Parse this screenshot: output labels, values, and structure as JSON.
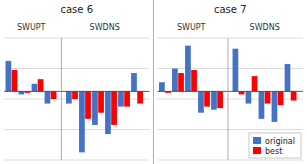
{
  "chart_data": [
    {
      "type": "bar",
      "title": "case 6",
      "groups": [
        {
          "label": "SWUPT",
          "categories": [
            null,
            null,
            null,
            null
          ]
        },
        {
          "label": "SWDNS",
          "categories": [
            null,
            null,
            null,
            null,
            null,
            null
          ]
        }
      ],
      "series": [
        {
          "name": "original",
          "color": "#4472C4",
          "values": [
            20,
            -2,
            5,
            -8,
            -8,
            -40,
            -22,
            -28,
            -10,
            12
          ]
        },
        {
          "name": "best",
          "color": "#FF0000",
          "values": [
            14,
            -1,
            8,
            -5,
            -5,
            -18,
            -14,
            -22,
            -10,
            -8
          ]
        }
      ],
      "ylim": [
        -45,
        35
      ],
      "yticks": [
        -45,
        -25,
        -5,
        15,
        35
      ],
      "grid": true,
      "tick_labels": false,
      "legend": false
    },
    {
      "type": "bar",
      "title": "case 7",
      "groups": [
        {
          "label": "SWUPT",
          "categories": [
            null,
            null,
            null,
            null,
            null
          ]
        },
        {
          "label": "SWDNS",
          "categories": [
            null,
            null,
            null,
            null,
            null
          ]
        }
      ],
      "series": [
        {
          "name": "original",
          "color": "#4472C4",
          "values": [
            6,
            15,
            30,
            -14,
            -12,
            28,
            -8,
            -18,
            -20,
            18
          ]
        },
        {
          "name": "best",
          "color": "#FF0000",
          "values": [
            -1,
            12,
            14,
            -10,
            -11,
            -2,
            10,
            -8,
            -9,
            -6
          ]
        }
      ],
      "ylim": [
        -45,
        35
      ],
      "yticks": [
        -45,
        -25,
        -5,
        15,
        35
      ],
      "grid": true,
      "tick_labels": false,
      "legend": "lower right"
    }
  ]
}
